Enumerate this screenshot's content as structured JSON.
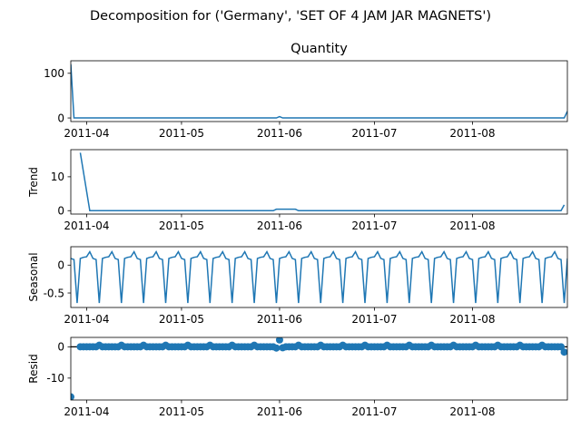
{
  "figure": {
    "suptitle": "Decomposition for ('Germany', 'SET OF 4 JAM JAR MAGNETS')",
    "line_color": "#1f77b4"
  },
  "chart_data": [
    {
      "type": "line",
      "title": "Quantity",
      "ylabel": "",
      "xlim": [
        "2011-03-27",
        "2011-08-31"
      ],
      "ylim": [
        -8,
        128
      ],
      "yticks": [
        0,
        100
      ],
      "xticks": [
        "2011-04-01",
        "2011-05-01",
        "2011-06-01",
        "2011-07-01",
        "2011-08-01"
      ],
      "xtick_labels": [
        "2011-04",
        "2011-05",
        "2011-06",
        "2011-07",
        "2011-08"
      ],
      "series": [
        {
          "x": [
            "2011-03-27",
            "2011-03-28",
            "2011-05-31",
            "2011-06-01",
            "2011-06-02",
            "2011-08-29",
            "2011-08-30",
            "2011-08-31"
          ],
          "y": [
            120,
            0,
            0,
            3,
            0,
            0,
            0,
            15
          ]
        }
      ]
    },
    {
      "type": "line",
      "title": "",
      "ylabel": "Trend",
      "xlim": [
        "2011-03-27",
        "2011-08-31"
      ],
      "ylim": [
        -1,
        18
      ],
      "yticks": [
        0,
        10
      ],
      "xticks": [
        "2011-04-01",
        "2011-05-01",
        "2011-06-01",
        "2011-07-01",
        "2011-08-01"
      ],
      "xtick_labels": [
        "2011-04",
        "2011-05",
        "2011-06",
        "2011-07",
        "2011-08"
      ],
      "series": [
        {
          "x": [
            "2011-03-30",
            "2011-04-02",
            "2011-05-30",
            "2011-05-31",
            "2011-06-06",
            "2011-06-07",
            "2011-08-29",
            "2011-08-30"
          ],
          "y": [
            17.1,
            0,
            0,
            0.43,
            0.43,
            0,
            0,
            1.7
          ]
        }
      ]
    },
    {
      "type": "line",
      "title": "",
      "ylabel": "Seasonal",
      "xlim": [
        "2011-03-27",
        "2011-08-31"
      ],
      "ylim": [
        -0.76,
        0.33
      ],
      "yticks": [
        0.0,
        -0.5
      ],
      "xticks": [
        "2011-04-01",
        "2011-05-01",
        "2011-06-01",
        "2011-07-01",
        "2011-08-01"
      ],
      "xtick_labels": [
        "2011-04",
        "2011-05",
        "2011-06",
        "2011-07",
        "2011-08"
      ],
      "period_days": 7,
      "start": "2011-03-27",
      "end": "2011-08-31",
      "weekly_pattern": [
        0.12,
        0.1,
        -0.68,
        0.12,
        0.14,
        0.15,
        0.24
      ]
    },
    {
      "type": "scatter",
      "title": "",
      "ylabel": "Resid",
      "xlim": [
        "2011-03-27",
        "2011-08-31"
      ],
      "ylim": [
        -17,
        3
      ],
      "yticks": [
        0,
        -10
      ],
      "xticks": [
        "2011-04-01",
        "2011-05-01",
        "2011-06-01",
        "2011-07-01",
        "2011-08-01"
      ],
      "xtick_labels": [
        "2011-04",
        "2011-05",
        "2011-06",
        "2011-07",
        "2011-08"
      ],
      "baseline": 0,
      "start": "2011-03-30",
      "end": "2011-08-30",
      "default_value": 0,
      "special_points": [
        {
          "x": "2011-03-27",
          "y": -16
        },
        {
          "x": "2011-05-31",
          "y": -0.4
        },
        {
          "x": "2011-06-01",
          "y": 2.2
        },
        {
          "x": "2011-06-02",
          "y": -0.3
        },
        {
          "x": "2011-08-30",
          "y": -1.7
        }
      ],
      "bump_weekday_offset": 6,
      "bump_value": 0.5
    }
  ]
}
